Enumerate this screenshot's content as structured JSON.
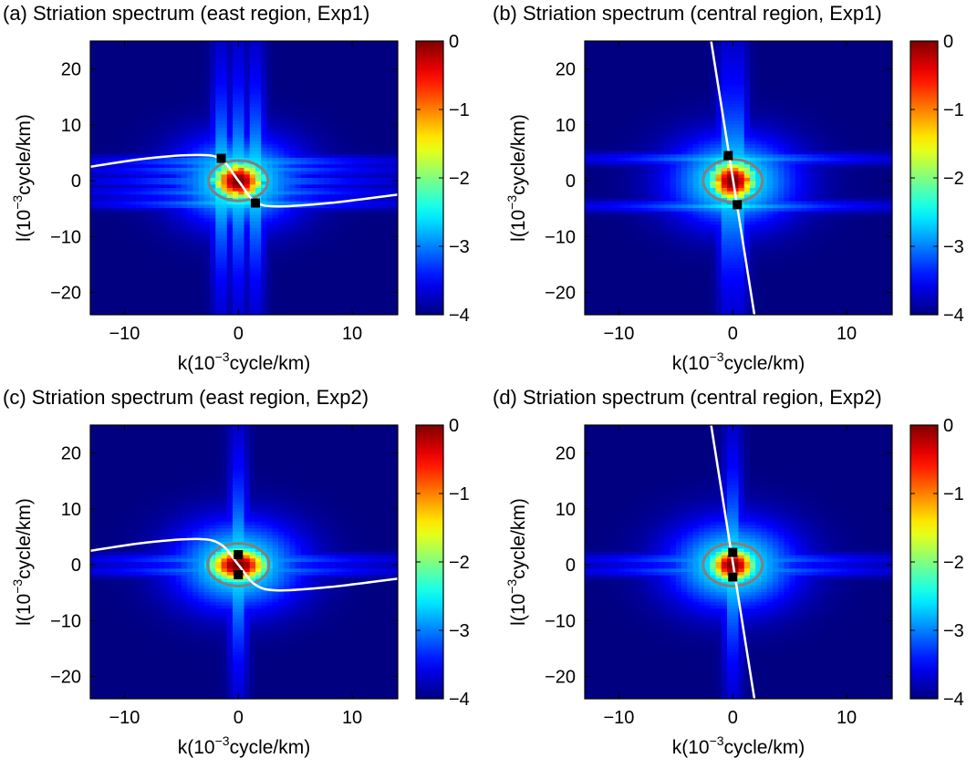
{
  "chart_data": [
    {
      "type": "heatmap",
      "panel": "a",
      "title": "(a) Striation spectrum (east region, Exp1)",
      "xlabel": {
        "pre": "k(10",
        "sup": "−3",
        "post": "cycle/km)"
      },
      "ylabel": {
        "pre": "l(10",
        "sup": "−3",
        "post": "cycle/km)"
      },
      "xlim": [
        -13,
        14
      ],
      "ylim": [
        -24,
        25
      ],
      "xticks": [
        -10,
        0,
        10
      ],
      "xtick_labels": [
        "−10",
        "0",
        "10"
      ],
      "yticks": [
        -20,
        -10,
        0,
        10,
        20
      ],
      "ytick_labels": [
        "−20",
        "−10",
        "0",
        "10",
        "20"
      ],
      "colorbar": {
        "range": [
          -4,
          0
        ],
        "ticks": [
          0,
          -1,
          -2,
          -3,
          -4
        ],
        "tick_labels": [
          "0",
          "−1",
          "−2",
          "−3",
          "−4"
        ]
      },
      "spectrum": {
        "core_radius_k": 2.2,
        "core_radius_l": 3.4,
        "streak_k": [
          -1.5,
          0,
          1.5
        ],
        "streak_l": [
          -4,
          -2,
          0,
          2,
          3.5
        ],
        "orientation": "flat"
      },
      "ellipse": {
        "k0": 0,
        "l0": 0,
        "a": 2.6,
        "b": 3.6,
        "color": "#808080"
      },
      "curve": {
        "type": "s",
        "points": [
          [
            -13,
            2.5
          ],
          [
            -8,
            4
          ],
          [
            -3.5,
            4.6
          ],
          [
            -1.5,
            3.8
          ],
          [
            0,
            0
          ],
          [
            1.5,
            -3.8
          ],
          [
            3.5,
            -4.6
          ],
          [
            8,
            -4
          ],
          [
            14,
            -2.5
          ]
        ],
        "color": "#ffffff"
      },
      "markers": [
        [
          -1.5,
          4
        ],
        [
          1.5,
          -4
        ]
      ]
    },
    {
      "type": "heatmap",
      "panel": "b",
      "title": "(b) Striation spectrum (central region, Exp1)",
      "xlabel": {
        "pre": "k(10",
        "sup": "−3",
        "post": "cycle/km)"
      },
      "ylabel": {
        "pre": "l(10",
        "sup": "−3",
        "post": "cycle/km)"
      },
      "xlim": [
        -13,
        14
      ],
      "ylim": [
        -24,
        25
      ],
      "xticks": [
        -10,
        0,
        10
      ],
      "xtick_labels": [
        "−10",
        "0",
        "10"
      ],
      "yticks": [
        -20,
        -10,
        0,
        10,
        20
      ],
      "ytick_labels": [
        "−20",
        "−10",
        "0",
        "10",
        "20"
      ],
      "colorbar": {
        "range": [
          -4,
          0
        ],
        "ticks": [
          0,
          -1,
          -2,
          -3,
          -4
        ],
        "tick_labels": [
          "0",
          "−1",
          "−2",
          "−3",
          "−4"
        ]
      },
      "spectrum": {
        "core_radius_k": 2.0,
        "core_radius_l": 3.6,
        "streak_k": [
          -0.5,
          0.5
        ],
        "streak_l": [
          -4.5,
          4
        ],
        "orientation": "flat"
      },
      "ellipse": {
        "k0": 0,
        "l0": 0,
        "a": 2.6,
        "b": 3.8,
        "color": "#808080"
      },
      "curve": {
        "type": "line",
        "points": [
          [
            -1.9,
            25
          ],
          [
            1.9,
            -24
          ]
        ],
        "color": "#ffffff"
      },
      "markers": [
        [
          -0.4,
          4.5
        ],
        [
          0.4,
          -4.3
        ]
      ]
    },
    {
      "type": "heatmap",
      "panel": "c",
      "title": "(c) Striation spectrum (east region, Exp2)",
      "xlabel": {
        "pre": "k(10",
        "sup": "−3",
        "post": "cycle/km)"
      },
      "ylabel": {
        "pre": "l(10",
        "sup": "−3",
        "post": "cycle/km)"
      },
      "xlim": [
        -13,
        14
      ],
      "ylim": [
        -24,
        25
      ],
      "xticks": [
        -10,
        0,
        10
      ],
      "xtick_labels": [
        "−10",
        "0",
        "10"
      ],
      "yticks": [
        -20,
        -10,
        0,
        10,
        20
      ],
      "ytick_labels": [
        "−20",
        "−10",
        "0",
        "10",
        "20"
      ],
      "colorbar": {
        "range": [
          -4,
          0
        ],
        "ticks": [
          0,
          -1,
          -2,
          -3,
          -4
        ],
        "tick_labels": [
          "0",
          "−1",
          "−2",
          "−3",
          "−4"
        ]
      },
      "spectrum": {
        "core_radius_k": 2.6,
        "core_radius_l": 3.0,
        "streak_k": [
          0
        ],
        "streak_l": [
          -1,
          1
        ],
        "orientation": "smooth"
      },
      "ellipse": {
        "k0": 0,
        "l0": 0,
        "a": 2.7,
        "b": 3.8,
        "color": "#808080"
      },
      "curve": {
        "type": "s",
        "points": [
          [
            -13,
            2.5
          ],
          [
            -8,
            4
          ],
          [
            -3.5,
            4.6
          ],
          [
            -1.5,
            3.6
          ],
          [
            0,
            0
          ],
          [
            1.5,
            -3.6
          ],
          [
            3.5,
            -4.6
          ],
          [
            8,
            -4
          ],
          [
            14,
            -2.5
          ]
        ],
        "color": "#ffffff"
      },
      "markers": [
        [
          0,
          1.8
        ],
        [
          0,
          -1.8
        ]
      ]
    },
    {
      "type": "heatmap",
      "panel": "d",
      "title": "(d) Striation spectrum (central region, Exp2)",
      "xlabel": {
        "pre": "k(10",
        "sup": "−3",
        "post": "cycle/km)"
      },
      "ylabel": {
        "pre": "l(10",
        "sup": "−3",
        "post": "cycle/km)"
      },
      "xlim": [
        -13,
        14
      ],
      "ylim": [
        -24,
        25
      ],
      "xticks": [
        -10,
        0,
        10
      ],
      "xtick_labels": [
        "−10",
        "0",
        "10"
      ],
      "yticks": [
        -20,
        -10,
        0,
        10,
        20
      ],
      "ytick_labels": [
        "−20",
        "−10",
        "0",
        "10",
        "20"
      ],
      "colorbar": {
        "range": [
          -4,
          0
        ],
        "ticks": [
          0,
          -1,
          -2,
          -3,
          -4
        ],
        "tick_labels": [
          "0",
          "−1",
          "−2",
          "−3",
          "−4"
        ]
      },
      "spectrum": {
        "core_radius_k": 2.0,
        "core_radius_l": 3.0,
        "streak_k": [
          0
        ],
        "streak_l": [
          -1,
          1
        ],
        "orientation": "smooth"
      },
      "ellipse": {
        "k0": 0,
        "l0": 0,
        "a": 2.6,
        "b": 3.8,
        "color": "#808080"
      },
      "curve": {
        "type": "line",
        "points": [
          [
            -1.9,
            25
          ],
          [
            1.9,
            -24
          ]
        ],
        "color": "#ffffff"
      },
      "markers": [
        [
          0,
          2.2
        ],
        [
          0,
          -2.2
        ]
      ]
    }
  ]
}
